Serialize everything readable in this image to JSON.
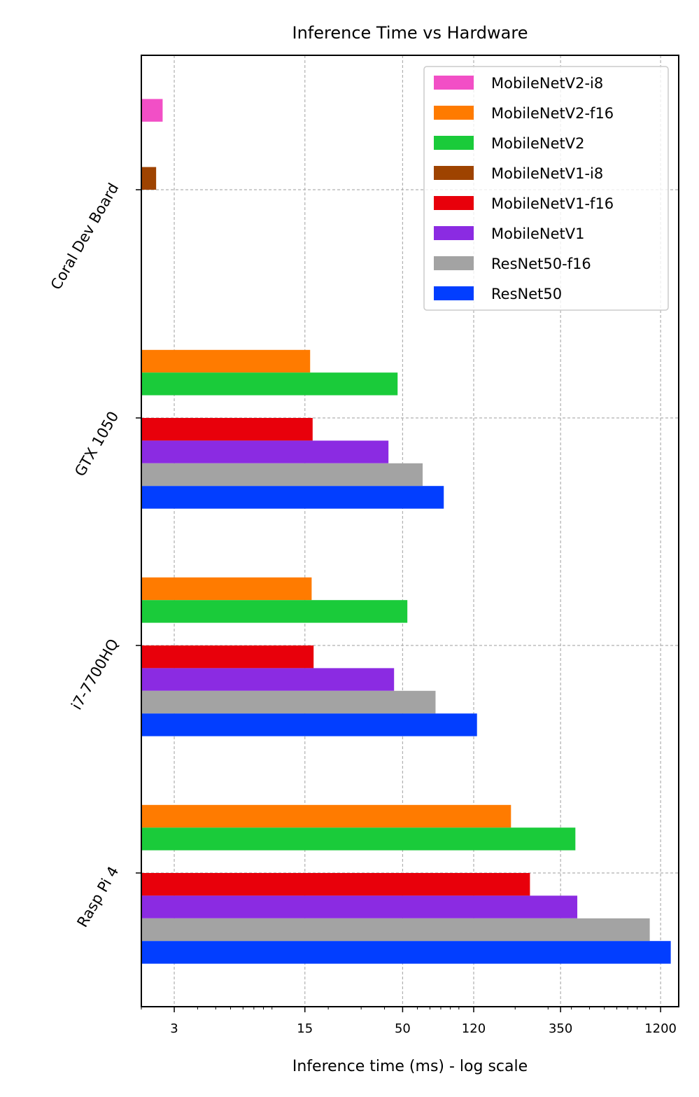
{
  "chart_data": {
    "type": "bar",
    "orientation": "horizontal",
    "title": "Inference Time vs Hardware",
    "xlabel": "Inference time (ms) - log scale",
    "ylabel": "",
    "xscale": "log",
    "xlim": [
      2.0,
      1500
    ],
    "xticks": [
      {
        "value": 3,
        "label": "3"
      },
      {
        "value": 15,
        "label": "15"
      },
      {
        "value": 50,
        "label": "50"
      },
      {
        "value": 120,
        "label": "120"
      },
      {
        "value": 350,
        "label": "350"
      },
      {
        "value": 1200,
        "label": "1200"
      }
    ],
    "grid": true,
    "legend_position": "top-right",
    "categories": [
      "Coral Dev Board",
      "GTX 1050",
      "i7-7700HQ",
      "Rasp Pi 4"
    ],
    "series": [
      {
        "name": "MobileNetV2-i8",
        "color": "#f24fc6",
        "values": [
          2.6,
          null,
          null,
          null
        ]
      },
      {
        "name": "MobileNetV2-f16",
        "color": "#ff7b00",
        "values": [
          null,
          16,
          16.3,
          190
        ]
      },
      {
        "name": "MobileNetV2",
        "color": "#1acb3a",
        "values": [
          null,
          47,
          53,
          420
        ]
      },
      {
        "name": "MobileNetV1-i8",
        "color": "#9e4300",
        "values": [
          2.4,
          null,
          null,
          null
        ]
      },
      {
        "name": "MobileNetV1-f16",
        "color": "#e8000b",
        "values": [
          null,
          16.5,
          16.7,
          240
        ]
      },
      {
        "name": "MobileNetV1",
        "color": "#8b2be2",
        "values": [
          null,
          42,
          45,
          430
        ]
      },
      {
        "name": "ResNet50-f16",
        "color": "#a3a3a3",
        "values": [
          null,
          64,
          75,
          1050
        ]
      },
      {
        "name": "ResNet50",
        "color": "#023eff",
        "values": [
          null,
          83,
          125,
          1360
        ]
      }
    ]
  }
}
